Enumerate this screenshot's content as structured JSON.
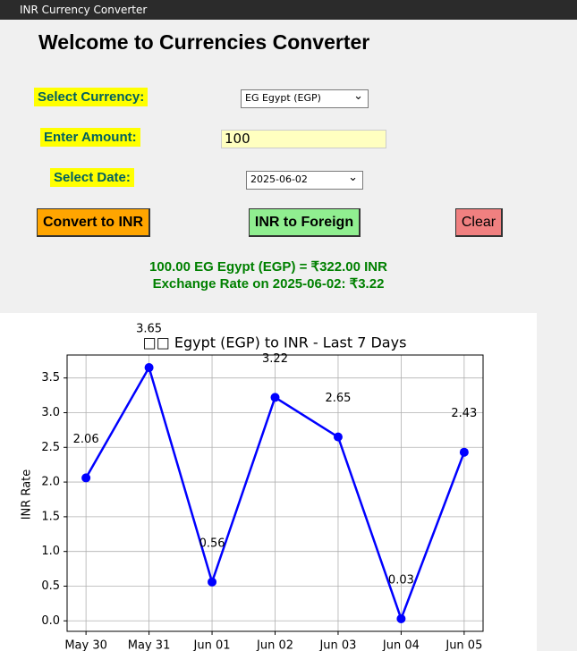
{
  "window": {
    "title": "INR Currency Converter"
  },
  "header": {
    "title": "Welcome to Currencies Converter"
  },
  "form": {
    "currency_label": "Select Currency:",
    "currency_value": "EG Egypt (EGP)",
    "amount_label": "Enter Amount:",
    "amount_value": "100",
    "date_label": "Select Date:",
    "date_value": "2025-06-02"
  },
  "buttons": [
    "Convert to INR",
    "INR to Foreign",
    "Clear"
  ],
  "result": {
    "line1": "100.00 EG Egypt (EGP) = ₹322.00 INR",
    "line2": "Exchange Rate on 2025-06-02: ₹3.22"
  },
  "chart_data": {
    "type": "line",
    "title": "□□ Egypt (EGP) to INR - Last 7 Days",
    "y_label": "INR Rate",
    "categories": [
      "May 30",
      "May 31",
      "Jun 01",
      "Jun 02",
      "Jun 03",
      "Jun 04",
      "Jun 05"
    ],
    "values": [
      2.06,
      3.65,
      0.56,
      3.22,
      2.65,
      0.03,
      2.43
    ],
    "color": "#0000ff",
    "ylim": [
      -0.151,
      3.831
    ],
    "yticks": [
      {
        "value": 0,
        "label": "0.0"
      },
      0.5,
      {
        "value": 1,
        "label": "1.0"
      },
      1.5,
      {
        "value": 2,
        "label": "2.0"
      },
      2.5,
      {
        "value": 3,
        "label": "3.0"
      },
      3.5
    ],
    "grid": true
  }
}
